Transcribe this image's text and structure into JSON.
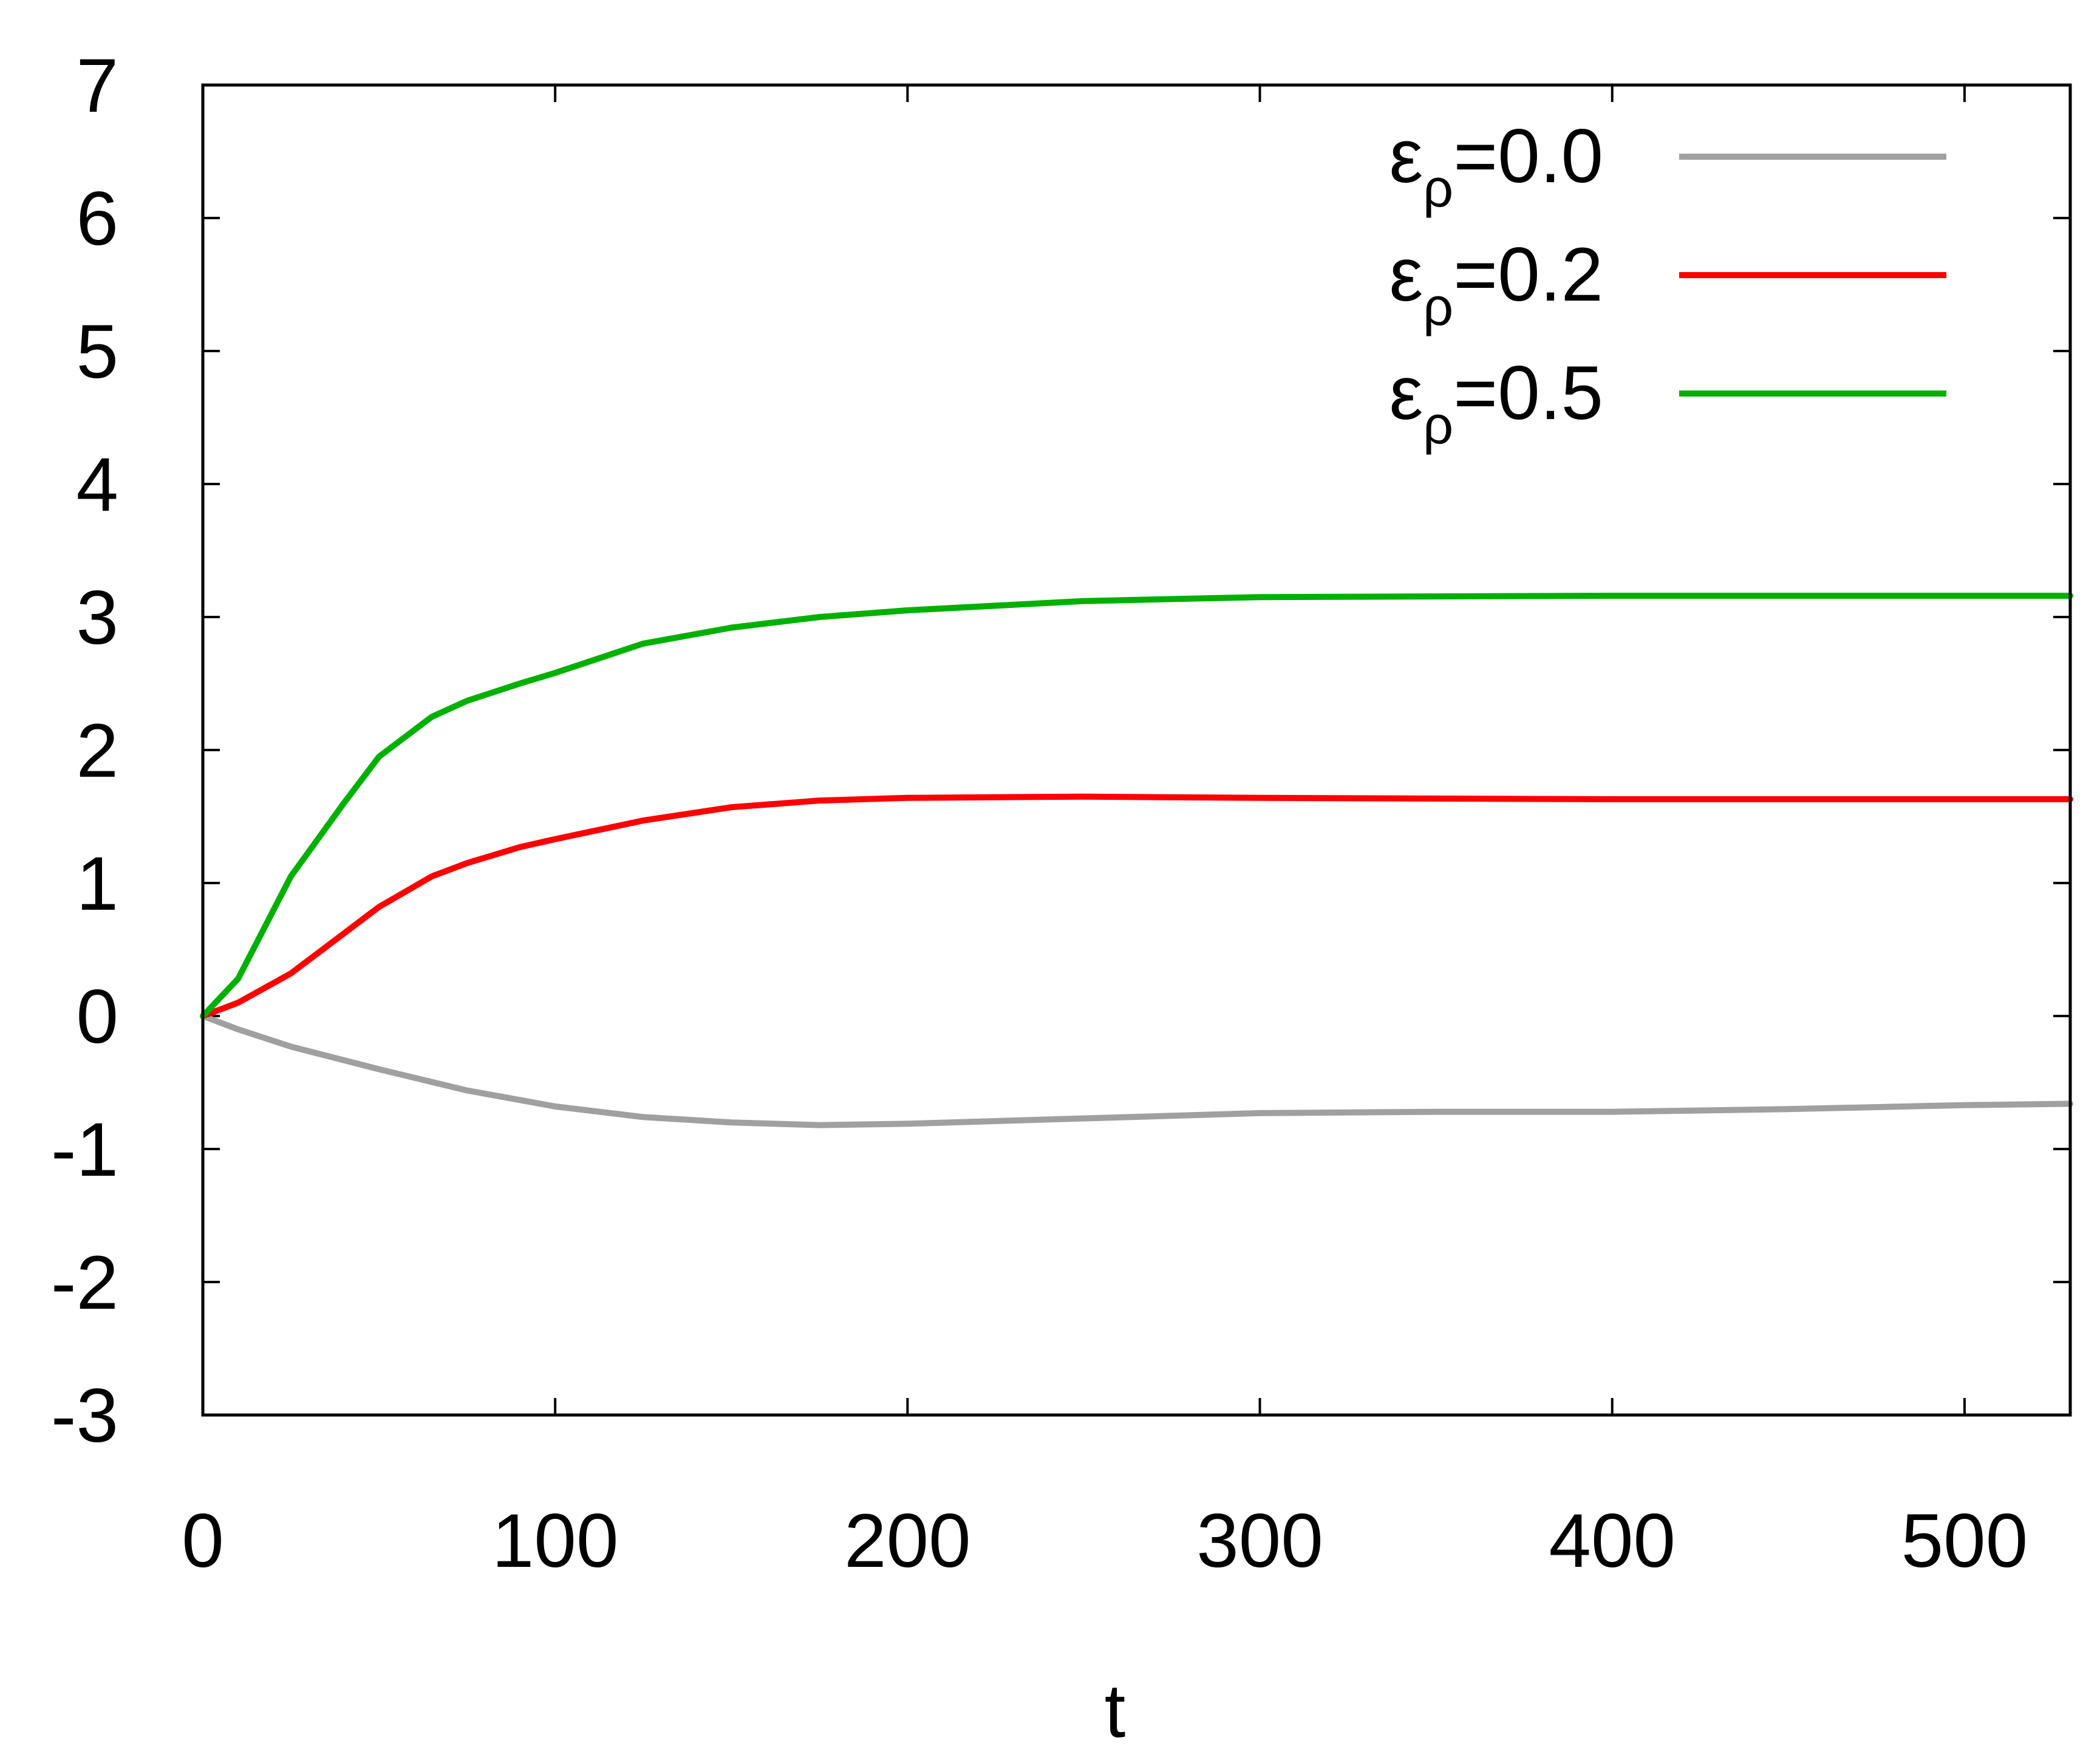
{
  "chart_data": {
    "type": "line",
    "xlabel": "t",
    "ylabel": "",
    "xlim": [
      0,
      530
    ],
    "ylim": [
      -3,
      7
    ],
    "xticks": [
      0,
      100,
      200,
      300,
      400,
      500
    ],
    "yticks": [
      -3,
      -2,
      -1,
      0,
      1,
      2,
      3,
      4,
      5,
      6,
      7
    ],
    "grid": false,
    "legend_position": "top-right",
    "series": [
      {
        "name": "ε",
        "name_sub": "ρ",
        "name_value": "=0.0",
        "color": "#a0a0a0",
        "x": [
          0,
          10,
          25,
          50,
          75,
          100,
          125,
          150,
          175,
          200,
          250,
          300,
          350,
          400,
          450,
          500,
          530
        ],
        "y": [
          0,
          -0.1,
          -0.23,
          -0.4,
          -0.56,
          -0.68,
          -0.76,
          -0.8,
          -0.82,
          -0.81,
          -0.77,
          -0.73,
          -0.72,
          -0.72,
          -0.7,
          -0.67,
          -0.66
        ]
      },
      {
        "name": "ε",
        "name_sub": "ρ",
        "name_value": "=0.2",
        "color": "#ff0000",
        "x": [
          0,
          10,
          25,
          40,
          50,
          65,
          75,
          90,
          100,
          125,
          150,
          175,
          200,
          250,
          300,
          400,
          530
        ],
        "y": [
          0,
          0.1,
          0.32,
          0.62,
          0.82,
          1.05,
          1.15,
          1.27,
          1.33,
          1.47,
          1.57,
          1.62,
          1.64,
          1.65,
          1.64,
          1.63,
          1.63
        ]
      },
      {
        "name": "ε",
        "name_sub": "ρ",
        "name_value": "=0.5",
        "color": "#00b000",
        "x": [
          0,
          10,
          25,
          40,
          50,
          65,
          75,
          90,
          100,
          125,
          150,
          175,
          200,
          250,
          300,
          400,
          530
        ],
        "y": [
          0,
          0.28,
          1.05,
          1.6,
          1.95,
          2.25,
          2.37,
          2.5,
          2.58,
          2.8,
          2.92,
          3.0,
          3.05,
          3.12,
          3.15,
          3.16,
          3.16
        ]
      }
    ]
  }
}
